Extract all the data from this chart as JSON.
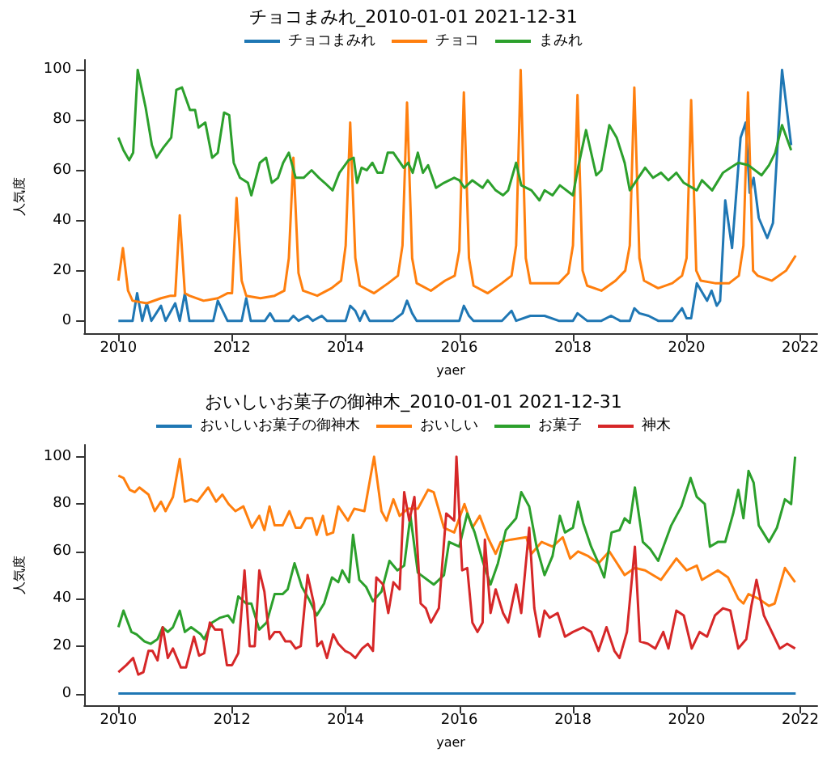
{
  "chart_data": [
    {
      "type": "line",
      "title": "チョコまみれ_2010-01-01 2021-12-31",
      "xlabel": "yaer",
      "ylabel": "人気度",
      "xlim": [
        2009.4,
        2022.3
      ],
      "xticks": [
        2010,
        2012,
        2014,
        2016,
        2018,
        2020,
        2022
      ],
      "ylim": [
        -5,
        104
      ],
      "yticks": [
        0,
        20,
        40,
        60,
        80,
        100
      ],
      "legend": "top",
      "series": [
        {
          "name": "チョコまみれ",
          "color": "#1f77b4",
          "x": [
            2010.0,
            2010.25,
            2010.33,
            2010.42,
            2010.5,
            2010.58,
            2010.75,
            2010.83,
            2011.0,
            2011.08,
            2011.17,
            2011.25,
            2011.67,
            2011.75,
            2011.92,
            2012.17,
            2012.25,
            2012.33,
            2012.58,
            2012.67,
            2012.75,
            2013.0,
            2013.08,
            2013.17,
            2013.33,
            2013.42,
            2013.58,
            2013.67,
            2014.0,
            2014.08,
            2014.17,
            2014.25,
            2014.33,
            2014.42,
            2014.83,
            2015.0,
            2015.08,
            2015.17,
            2015.25,
            2015.75,
            2016.0,
            2016.08,
            2016.17,
            2016.25,
            2016.5,
            2016.75,
            2016.92,
            2017.0,
            2017.25,
            2017.5,
            2017.75,
            2018.0,
            2018.08,
            2018.25,
            2018.5,
            2018.67,
            2018.83,
            2019.0,
            2019.08,
            2019.17,
            2019.33,
            2019.5,
            2019.75,
            2019.92,
            2020.0,
            2020.08,
            2020.18,
            2020.36,
            2020.44,
            2020.53,
            2020.59,
            2020.68,
            2020.8,
            2020.95,
            2021.04,
            2021.11,
            2021.18,
            2021.27,
            2021.42,
            2021.52,
            2021.68,
            2021.84
          ],
          "values": [
            0,
            0,
            11,
            0,
            7,
            0,
            6,
            0,
            7,
            0,
            11,
            0,
            0,
            8,
            0,
            0,
            9,
            0,
            0,
            3,
            0,
            0,
            2,
            0,
            2,
            0,
            2,
            0,
            0,
            6,
            4,
            0,
            4,
            0,
            0,
            3,
            8,
            3,
            0,
            0,
            0,
            6,
            2,
            0,
            0,
            0,
            4,
            0,
            2,
            2,
            0,
            0,
            3,
            0,
            0,
            2,
            0,
            0,
            5,
            3,
            2,
            0,
            0,
            5,
            1,
            1,
            15,
            8,
            12,
            6,
            8,
            48,
            29,
            73,
            79,
            51,
            57,
            41,
            33,
            39,
            100,
            70
          ]
        },
        {
          "name": "チョコ",
          "color": "#ff7f0e",
          "x": [
            2010.0,
            2010.08,
            2010.17,
            2010.25,
            2010.5,
            2010.75,
            2010.92,
            2011.0,
            2011.08,
            2011.17,
            2011.25,
            2011.5,
            2011.75,
            2011.92,
            2012.0,
            2012.08,
            2012.17,
            2012.25,
            2012.5,
            2012.75,
            2012.92,
            2013.0,
            2013.08,
            2013.17,
            2013.25,
            2013.5,
            2013.75,
            2013.92,
            2014.0,
            2014.08,
            2014.17,
            2014.25,
            2014.5,
            2014.75,
            2014.92,
            2015.0,
            2015.08,
            2015.17,
            2015.25,
            2015.5,
            2015.75,
            2015.92,
            2016.0,
            2016.08,
            2016.17,
            2016.25,
            2016.5,
            2016.75,
            2016.92,
            2017.0,
            2017.08,
            2017.17,
            2017.25,
            2017.5,
            2017.75,
            2017.92,
            2018.0,
            2018.08,
            2018.17,
            2018.25,
            2018.5,
            2018.75,
            2018.92,
            2019.0,
            2019.08,
            2019.17,
            2019.25,
            2019.5,
            2019.75,
            2019.92,
            2020.0,
            2020.08,
            2020.17,
            2020.25,
            2020.5,
            2020.75,
            2020.92,
            2021.0,
            2021.08,
            2021.17,
            2021.25,
            2021.5,
            2021.75,
            2021.92
          ],
          "values": [
            16,
            29,
            12,
            8,
            7,
            9,
            10,
            10,
            42,
            11,
            10,
            8,
            9,
            11,
            11,
            49,
            16,
            10,
            9,
            10,
            12,
            25,
            65,
            19,
            12,
            10,
            13,
            16,
            30,
            79,
            25,
            14,
            11,
            15,
            18,
            30,
            87,
            25,
            15,
            12,
            16,
            18,
            28,
            91,
            25,
            14,
            11,
            15,
            18,
            30,
            100,
            25,
            15,
            15,
            15,
            19,
            30,
            90,
            20,
            14,
            12,
            16,
            20,
            30,
            93,
            25,
            16,
            13,
            15,
            18,
            25,
            88,
            20,
            16,
            15,
            15,
            18,
            30,
            91,
            20,
            18,
            16,
            20,
            26
          ]
        },
        {
          "name": "まみれ",
          "color": "#2ca02c",
          "x": [
            2010.0,
            2010.09,
            2010.19,
            2010.26,
            2010.34,
            2010.48,
            2010.59,
            2010.67,
            2010.79,
            2010.93,
            2011.02,
            2011.12,
            2011.26,
            2011.35,
            2011.41,
            2011.53,
            2011.65,
            2011.75,
            2011.86,
            2011.95,
            2012.03,
            2012.14,
            2012.28,
            2012.34,
            2012.49,
            2012.6,
            2012.7,
            2012.81,
            2012.9,
            2013.0,
            2013.12,
            2013.26,
            2013.4,
            2013.53,
            2013.63,
            2013.77,
            2013.89,
            2014.05,
            2014.14,
            2014.2,
            2014.28,
            2014.37,
            2014.47,
            2014.56,
            2014.65,
            2014.74,
            2014.84,
            2014.93,
            2015.02,
            2015.1,
            2015.18,
            2015.27,
            2015.36,
            2015.45,
            2015.59,
            2015.73,
            2015.91,
            2016.0,
            2016.09,
            2016.23,
            2016.41,
            2016.5,
            2016.64,
            2016.77,
            2016.86,
            2017.0,
            2017.09,
            2017.27,
            2017.41,
            2017.5,
            2017.64,
            2017.77,
            2018.0,
            2018.09,
            2018.23,
            2018.41,
            2018.5,
            2018.64,
            2018.77,
            2018.91,
            2019.0,
            2019.09,
            2019.27,
            2019.41,
            2019.55,
            2019.68,
            2019.82,
            2019.95,
            2020.18,
            2020.27,
            2020.45,
            2020.64,
            2020.77,
            2020.91,
            2021.09,
            2021.32,
            2021.45,
            2021.56,
            2021.68,
            2021.84
          ],
          "values": [
            73,
            68,
            64,
            67,
            100,
            85,
            70,
            65,
            69,
            73,
            92,
            93,
            84,
            84,
            77,
            79,
            65,
            67,
            83,
            82,
            63,
            57,
            55,
            50,
            63,
            65,
            55,
            57,
            63,
            67,
            57,
            57,
            60,
            57,
            55,
            52,
            59,
            64,
            65,
            55,
            61,
            60,
            63,
            59,
            59,
            67,
            67,
            64,
            61,
            63,
            59,
            67,
            59,
            62,
            53,
            55,
            57,
            56,
            53,
            56,
            53,
            56,
            52,
            50,
            52,
            63,
            54,
            52,
            48,
            52,
            50,
            54,
            50,
            61,
            76,
            58,
            60,
            78,
            73,
            63,
            52,
            55,
            61,
            57,
            59,
            56,
            59,
            55,
            52,
            56,
            52,
            59,
            61,
            63,
            62,
            58,
            62,
            67,
            78,
            68
          ]
        }
      ]
    },
    {
      "type": "line",
      "title": "おいしいお菓子の御神木_2010-01-01 2021-12-31",
      "xlabel": "yaer",
      "ylabel": "人気度",
      "xlim": [
        2009.4,
        2022.3
      ],
      "xticks": [
        2010,
        2012,
        2014,
        2016,
        2018,
        2020,
        2022
      ],
      "ylim": [
        -5,
        105
      ],
      "yticks": [
        0,
        20,
        40,
        60,
        80,
        100
      ],
      "legend": "top",
      "series": [
        {
          "name": "おいしいお菓子の御神木",
          "color": "#1f77b4",
          "x": [
            2010.0,
            2012.0,
            2014.0,
            2016.0,
            2018.0,
            2020.0,
            2021.92
          ],
          "values": [
            0,
            0,
            0,
            0,
            0,
            0,
            0
          ]
        },
        {
          "name": "おいしい",
          "color": "#ff7f0e",
          "x": [
            2010.0,
            2010.09,
            2010.2,
            2010.29,
            2010.37,
            2010.53,
            2010.64,
            2010.75,
            2010.83,
            2010.96,
            2011.08,
            2011.17,
            2011.28,
            2011.39,
            2011.58,
            2011.72,
            2011.83,
            2011.94,
            2012.06,
            2012.2,
            2012.35,
            2012.48,
            2012.57,
            2012.66,
            2012.75,
            2012.89,
            2013.01,
            2013.12,
            2013.21,
            2013.3,
            2013.41,
            2013.49,
            2013.6,
            2013.67,
            2013.78,
            2013.87,
            2014.04,
            2014.15,
            2014.33,
            2014.5,
            2014.63,
            2014.72,
            2014.84,
            2014.95,
            2015.09,
            2015.27,
            2015.45,
            2015.55,
            2015.73,
            2015.91,
            2016.09,
            2016.23,
            2016.36,
            2016.5,
            2016.64,
            2016.73,
            2016.91,
            2017.18,
            2017.27,
            2017.45,
            2017.64,
            2017.82,
            2017.95,
            2018.09,
            2018.27,
            2018.45,
            2018.64,
            2018.91,
            2019.09,
            2019.27,
            2019.55,
            2019.73,
            2019.82,
            2020.0,
            2020.18,
            2020.27,
            2020.55,
            2020.73,
            2020.91,
            2021.0,
            2021.09,
            2021.27,
            2021.45,
            2021.55,
            2021.73,
            2021.91
          ],
          "values": [
            92,
            91,
            86,
            85,
            87,
            84,
            77,
            81,
            77,
            83,
            99,
            81,
            82,
            81,
            87,
            81,
            84,
            80,
            77,
            79,
            70,
            75,
            69,
            79,
            71,
            71,
            77,
            70,
            70,
            74,
            74,
            67,
            75,
            67,
            68,
            79,
            73,
            78,
            77,
            100,
            77,
            73,
            82,
            75,
            78,
            78,
            86,
            85,
            70,
            68,
            80,
            70,
            75,
            66,
            59,
            64,
            65,
            66,
            59,
            64,
            62,
            66,
            57,
            60,
            58,
            55,
            60,
            50,
            53,
            52,
            48,
            54,
            57,
            52,
            54,
            48,
            52,
            49,
            40,
            38,
            42,
            40,
            37,
            38,
            53,
            47
          ]
        },
        {
          "name": "お菓子",
          "color": "#2ca02c",
          "x": [
            2010.0,
            2010.09,
            2010.23,
            2010.32,
            2010.46,
            2010.57,
            2010.69,
            2010.78,
            2010.87,
            2010.96,
            2011.08,
            2011.17,
            2011.28,
            2011.45,
            2011.51,
            2011.65,
            2011.79,
            2011.93,
            2012.02,
            2012.11,
            2012.25,
            2012.34,
            2012.48,
            2012.61,
            2012.75,
            2012.89,
            2012.98,
            2013.1,
            2013.23,
            2013.35,
            2013.49,
            2013.62,
            2013.76,
            2013.87,
            2013.94,
            2014.06,
            2014.13,
            2014.24,
            2014.36,
            2014.48,
            2014.63,
            2014.77,
            2014.91,
            2015.03,
            2015.14,
            2015.27,
            2015.55,
            2015.73,
            2015.82,
            2016.0,
            2016.14,
            2016.27,
            2016.41,
            2016.55,
            2016.68,
            2016.82,
            2017.0,
            2017.09,
            2017.23,
            2017.36,
            2017.5,
            2017.64,
            2017.77,
            2017.86,
            2018.0,
            2018.09,
            2018.18,
            2018.32,
            2018.45,
            2018.55,
            2018.68,
            2018.82,
            2018.91,
            2019.0,
            2019.09,
            2019.23,
            2019.36,
            2019.5,
            2019.73,
            2019.91,
            2020.07,
            2020.18,
            2020.32,
            2020.41,
            2020.55,
            2020.68,
            2020.82,
            2020.91,
            2021.0,
            2021.09,
            2021.18,
            2021.27,
            2021.45,
            2021.59,
            2021.73,
            2021.84,
            2021.91
          ],
          "values": [
            28,
            35,
            26,
            25,
            22,
            21,
            23,
            28,
            26,
            28,
            35,
            26,
            28,
            25,
            23,
            30,
            32,
            33,
            30,
            41,
            38,
            38,
            27,
            30,
            42,
            42,
            44,
            55,
            45,
            40,
            33,
            38,
            49,
            47,
            52,
            47,
            67,
            48,
            45,
            39,
            43,
            56,
            52,
            54,
            75,
            51,
            46,
            50,
            64,
            62,
            76,
            68,
            56,
            46,
            55,
            69,
            74,
            85,
            79,
            62,
            50,
            58,
            75,
            68,
            70,
            81,
            72,
            62,
            55,
            49,
            68,
            69,
            74,
            72,
            87,
            64,
            61,
            56,
            71,
            79,
            91,
            83,
            80,
            62,
            64,
            64,
            76,
            86,
            74,
            94,
            89,
            71,
            64,
            70,
            82,
            80,
            100
          ]
        },
        {
          "name": "神木",
          "color": "#d62728",
          "x": [
            2010.0,
            2010.14,
            2010.26,
            2010.35,
            2010.44,
            2010.53,
            2010.6,
            2010.69,
            2010.78,
            2010.87,
            2010.96,
            2011.1,
            2011.19,
            2011.33,
            2011.42,
            2011.51,
            2011.61,
            2011.7,
            2011.82,
            2011.91,
            2012.0,
            2012.11,
            2012.22,
            2012.31,
            2012.4,
            2012.48,
            2012.57,
            2012.66,
            2012.75,
            2012.84,
            2012.94,
            2013.03,
            2013.12,
            2013.21,
            2013.33,
            2013.44,
            2013.5,
            2013.58,
            2013.67,
            2013.78,
            2013.87,
            2013.99,
            2014.08,
            2014.17,
            2014.29,
            2014.39,
            2014.48,
            2014.54,
            2014.66,
            2014.75,
            2014.84,
            2014.95,
            2015.03,
            2015.12,
            2015.21,
            2015.32,
            2015.41,
            2015.5,
            2015.64,
            2015.77,
            2015.91,
            2015.95,
            2016.05,
            2016.14,
            2016.23,
            2016.32,
            2016.41,
            2016.45,
            2016.55,
            2016.64,
            2016.77,
            2016.86,
            2017.0,
            2017.09,
            2017.23,
            2017.32,
            2017.41,
            2017.5,
            2017.59,
            2017.73,
            2017.86,
            2018.0,
            2018.18,
            2018.32,
            2018.45,
            2018.59,
            2018.73,
            2018.82,
            2018.95,
            2019.09,
            2019.18,
            2019.32,
            2019.45,
            2019.59,
            2019.68,
            2019.82,
            2019.95,
            2020.09,
            2020.23,
            2020.36,
            2020.5,
            2020.64,
            2020.77,
            2020.91,
            2021.05,
            2021.14,
            2021.23,
            2021.36,
            2021.5,
            2021.64,
            2021.77,
            2021.91
          ],
          "values": [
            9,
            12,
            15,
            8,
            9,
            18,
            18,
            14,
            28,
            15,
            19,
            11,
            11,
            24,
            16,
            17,
            30,
            27,
            27,
            12,
            12,
            17,
            52,
            20,
            20,
            52,
            43,
            23,
            26,
            26,
            22,
            22,
            19,
            20,
            50,
            38,
            20,
            22,
            15,
            25,
            21,
            18,
            17,
            15,
            19,
            21,
            18,
            49,
            46,
            34,
            47,
            44,
            85,
            73,
            83,
            38,
            36,
            30,
            36,
            76,
            73,
            100,
            52,
            53,
            30,
            26,
            30,
            65,
            34,
            44,
            34,
            30,
            46,
            34,
            70,
            36,
            24,
            35,
            32,
            34,
            24,
            26,
            28,
            26,
            18,
            28,
            18,
            15,
            26,
            62,
            22,
            21,
            19,
            26,
            19,
            35,
            33,
            19,
            26,
            24,
            33,
            36,
            35,
            19,
            23,
            37,
            48,
            33,
            26,
            19,
            21,
            19
          ]
        }
      ]
    }
  ]
}
